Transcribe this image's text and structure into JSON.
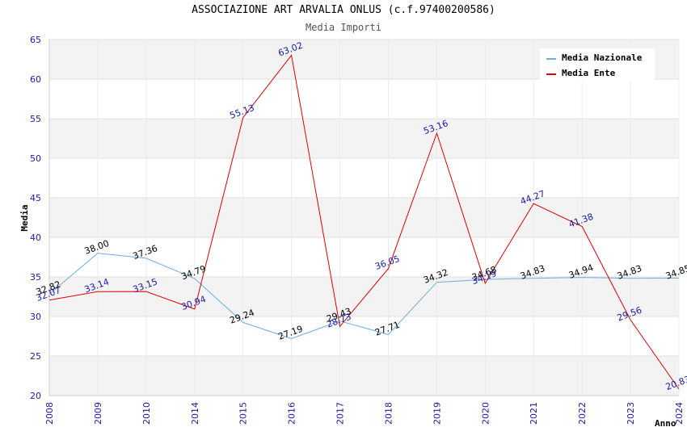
{
  "chart_data": {
    "type": "line",
    "title": "ASSOCIAZIONE ART ARVALIA ONLUS (c.f.97400200586)",
    "subtitle": "Media Importi",
    "xlabel": "Anno",
    "ylabel": "Media",
    "ylim": [
      20,
      65
    ],
    "yticks": [
      "20",
      "25",
      "30",
      "35",
      "40",
      "45",
      "50",
      "55",
      "60",
      "65"
    ],
    "categories": [
      "2008",
      "2009",
      "2010",
      "2014",
      "2015",
      "2016",
      "2017",
      "2018",
      "2019",
      "2020",
      "2021",
      "2022",
      "2023",
      "2024"
    ],
    "series": [
      {
        "name": "Media Nazionale",
        "color": "#6aaee6",
        "values": [
          32.82,
          38.0,
          37.36,
          34.79,
          29.24,
          27.19,
          29.43,
          27.71,
          34.32,
          34.68,
          34.83,
          34.94,
          34.83,
          34.85
        ],
        "labels": [
          "32.82",
          "38.00",
          "37.36",
          "34.79",
          "29.24",
          "27.19",
          "29.43",
          "27.71",
          "34.32",
          "34.68",
          "34.83",
          "34.94",
          "34.83",
          "34.85"
        ]
      },
      {
        "name": "Media Ente",
        "color": "#dd0000",
        "values": [
          32.07,
          33.14,
          33.15,
          30.94,
          55.13,
          63.02,
          28.73,
          36.05,
          53.16,
          34.19,
          44.27,
          41.38,
          29.56,
          20.83
        ],
        "labels": [
          "32.07",
          "33.14",
          "33.15",
          "30.94",
          "55.13",
          "63.02",
          "28.73",
          "36.05",
          "53.16",
          "34.19",
          "44.27",
          "41.38",
          "29.56",
          "20.83"
        ]
      }
    ],
    "grid": true,
    "legend_position": "top-right"
  }
}
